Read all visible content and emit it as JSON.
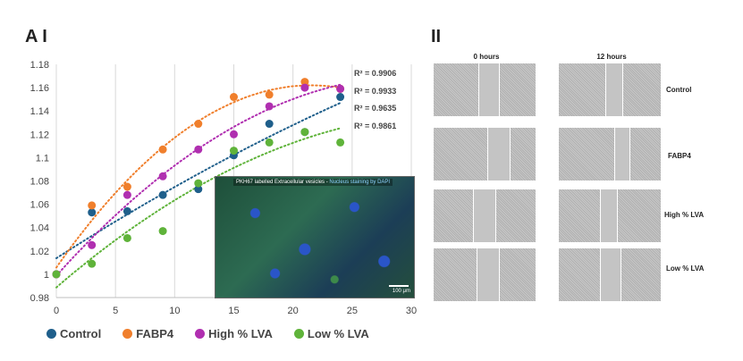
{
  "panels": {
    "left_label": "A I",
    "right_label": "II"
  },
  "chart_data": {
    "type": "scatter",
    "x_ticks": [
      0,
      5,
      10,
      15,
      20,
      25,
      30
    ],
    "y_ticks": [
      "0.98",
      "1",
      "1.02",
      "1.04",
      "1.06",
      "1.08",
      "1.1",
      "1.12",
      "1.14",
      "1.16",
      "1.18"
    ],
    "xlim": [
      0,
      30
    ],
    "ylim": [
      0.98,
      1.18
    ],
    "series": [
      {
        "name": "Control",
        "color": "#1f5f8b",
        "x": [
          0,
          3,
          6,
          9,
          12,
          15,
          18,
          21,
          24
        ],
        "y": [
          1.0,
          1.053,
          1.054,
          1.068,
          1.073,
          1.102,
          1.129,
          1.122,
          1.152
        ]
      },
      {
        "name": "FABP4",
        "color": "#f07f2c",
        "x": [
          0,
          3,
          6,
          9,
          12,
          15,
          18,
          21,
          24
        ],
        "y": [
          1.0,
          1.059,
          1.075,
          1.107,
          1.129,
          1.152,
          1.154,
          1.165,
          1.159
        ]
      },
      {
        "name": "High % LVA",
        "color": "#b02fb0",
        "x": [
          0,
          3,
          6,
          9,
          12,
          15,
          18,
          21,
          24
        ],
        "y": [
          1.0,
          1.025,
          1.068,
          1.084,
          1.107,
          1.12,
          1.144,
          1.16,
          1.159
        ]
      },
      {
        "name": "Low % LVA",
        "color": "#5fb33a",
        "x": [
          0,
          3,
          6,
          9,
          12,
          15,
          18,
          21,
          24
        ],
        "y": [
          1.0,
          1.009,
          1.031,
          1.037,
          1.078,
          1.106,
          1.113,
          1.122,
          1.113
        ]
      }
    ],
    "r_squared": [
      "R² = 0.9906",
      "R² = 0.9933",
      "R² = 0.9635",
      "R² = 0.9861"
    ],
    "legend_position": "bottom",
    "grid": "vertical"
  },
  "inset": {
    "caption_a": "PKH67 labelled Extracellular vesicles",
    "caption_b": "Nucleus staining by DAPI",
    "scale": "100 μm"
  },
  "wound_grid": {
    "columns": [
      "0 hours",
      "12 hours"
    ],
    "rows": [
      "Control",
      "FABP4",
      "High % LVA",
      "Low % LVA"
    ]
  }
}
